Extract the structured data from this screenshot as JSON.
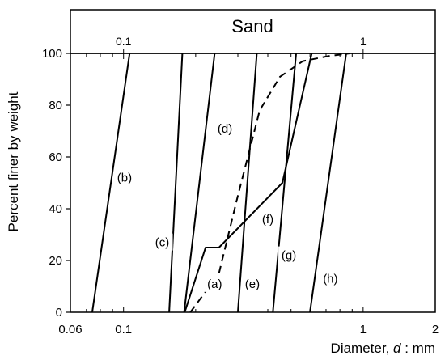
{
  "chart_data": {
    "type": "line",
    "xscale": "log",
    "xlim": [
      0.06,
      2
    ],
    "ylim": [
      0,
      100
    ],
    "xlabel_prefix": "Diameter, ",
    "xlabel_var": "d",
    "xlabel_suffix": " : mm",
    "ylabel": "Percent finer by weight",
    "band_title": "Sand",
    "band_ticks": [
      {
        "label": "0.1",
        "x": 0.1
      },
      {
        "label": "1",
        "x": 1
      }
    ],
    "xticks": [
      {
        "label": "0.06",
        "x": 0.06
      },
      {
        "label": "0.1",
        "x": 0.1
      },
      {
        "label": "1",
        "x": 1
      },
      {
        "label": "2",
        "x": 2
      }
    ],
    "yticks": [
      0,
      20,
      40,
      60,
      80,
      100
    ],
    "series": [
      {
        "name": "(a)",
        "dashed": false,
        "points": [
          [
            0.18,
            0
          ],
          [
            0.22,
            25
          ],
          [
            0.25,
            25
          ],
          [
            0.46,
            50
          ],
          [
            0.61,
            100
          ]
        ]
      },
      {
        "name": "(a)",
        "dashed": true,
        "points": [
          [
            0.19,
            0
          ],
          [
            0.25,
            15
          ],
          [
            0.3,
            45
          ],
          [
            0.37,
            78
          ],
          [
            0.45,
            91
          ],
          [
            0.56,
            97
          ],
          [
            0.72,
            99
          ],
          [
            0.88,
            100
          ]
        ]
      },
      {
        "name": "(b)",
        "dashed": false,
        "points": [
          [
            0.074,
            0
          ],
          [
            0.106,
            100
          ]
        ]
      },
      {
        "name": "(c)",
        "dashed": false,
        "points": [
          [
            0.155,
            0
          ],
          [
            0.176,
            100
          ]
        ]
      },
      {
        "name": "(d)",
        "dashed": false,
        "points": [
          [
            0.179,
            0
          ],
          [
            0.24,
            100
          ]
        ]
      },
      {
        "name": "(e)",
        "dashed": false,
        "points": [
          [
            0.3,
            0
          ],
          [
            0.36,
            100
          ]
        ]
      },
      {
        "name": "(g)",
        "dashed": false,
        "points": [
          [
            0.42,
            0
          ],
          [
            0.525,
            100
          ]
        ]
      },
      {
        "name": "(h)",
        "dashed": false,
        "points": [
          [
            0.6,
            0
          ],
          [
            0.85,
            100
          ]
        ]
      }
    ],
    "labels": [
      {
        "text": "(a)",
        "x": 0.24,
        "y": 11
      },
      {
        "text": "(b)",
        "x": 0.101,
        "y": 52
      },
      {
        "text": "(c)",
        "x": 0.145,
        "y": 27
      },
      {
        "text": "(d)",
        "x": 0.265,
        "y": 71
      },
      {
        "text": "(e)",
        "x": 0.345,
        "y": 11
      },
      {
        "text": "(f)",
        "x": 0.4,
        "y": 36
      },
      {
        "text": "(g)",
        "x": 0.49,
        "y": 22
      },
      {
        "text": "(h)",
        "x": 0.73,
        "y": 13
      }
    ]
  }
}
